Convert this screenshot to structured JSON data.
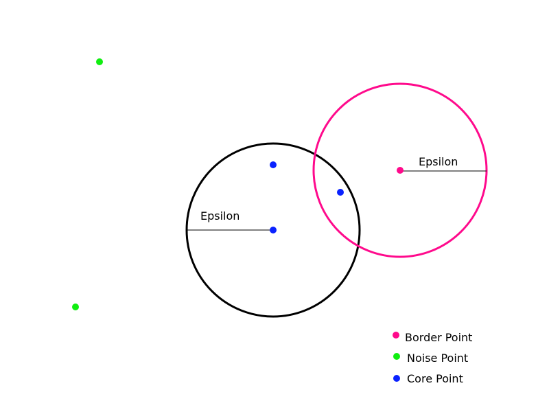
{
  "colors": {
    "core": "#0a22ff",
    "border": "#ff0a8c",
    "noise": "#11ee11",
    "core_circle": "#000000",
    "border_circle": "#ff0a8c",
    "radius_line": "#000000"
  },
  "circles": {
    "core": {
      "radius_label": "Epsilon"
    },
    "border": {
      "radius_label": "Epsilon"
    }
  },
  "legend": {
    "items": [
      {
        "label": "Border Point",
        "color_key": "border"
      },
      {
        "label": "Noise Point",
        "color_key": "noise"
      },
      {
        "label": "Core Point",
        "color_key": "core"
      }
    ]
  }
}
